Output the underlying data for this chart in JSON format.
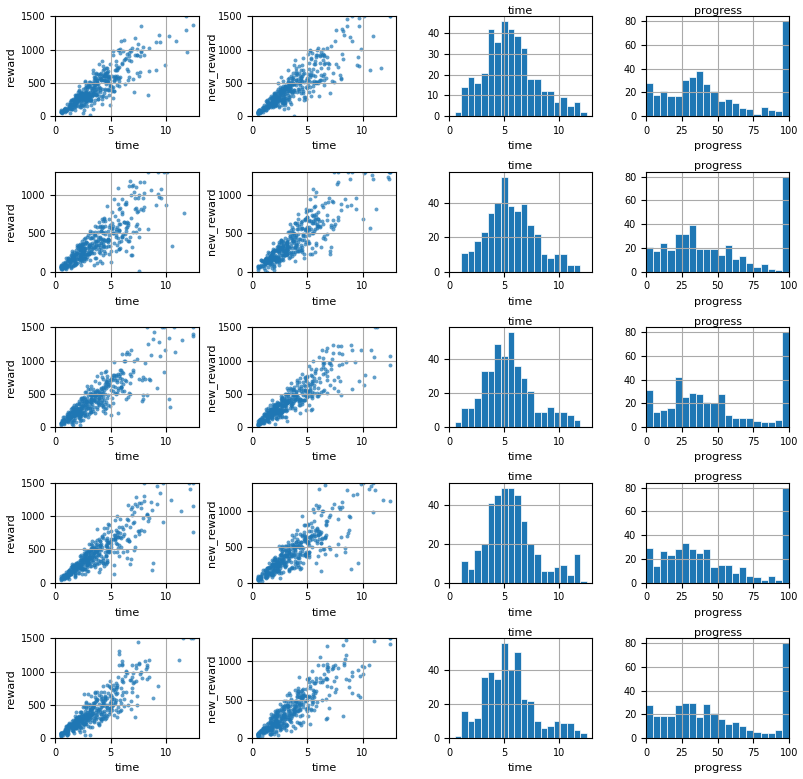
{
  "n_rows": 5,
  "n_cols": 4,
  "scatter_color": "#1f77b4",
  "hist_color": "#1f77b4",
  "scatter_alpha": 0.7,
  "scatter_marker_size": 8,
  "grid_color": "#aaaaaa",
  "grid_linewidth": 0.8,
  "scatter_ylabel1": "reward",
  "scatter_ylabel2": "new_reward",
  "scatter_xlabel": "time",
  "hist3_xlabel": "time",
  "hist4_xlabel": "progress",
  "hist3_title": "time",
  "hist4_title": "progress",
  "scatter_xlim": [
    0,
    13
  ],
  "scatter_ylim_rows": [
    [
      0,
      1500
    ],
    [
      0,
      1300
    ],
    [
      0,
      1500
    ],
    [
      0,
      1500
    ],
    [
      0,
      1500
    ]
  ],
  "scatter2_ylim_rows": [
    [
      0,
      1500
    ],
    [
      0,
      1300
    ],
    [
      0,
      1500
    ],
    [
      0,
      1400
    ],
    [
      0,
      1300
    ]
  ],
  "n_points": 400
}
